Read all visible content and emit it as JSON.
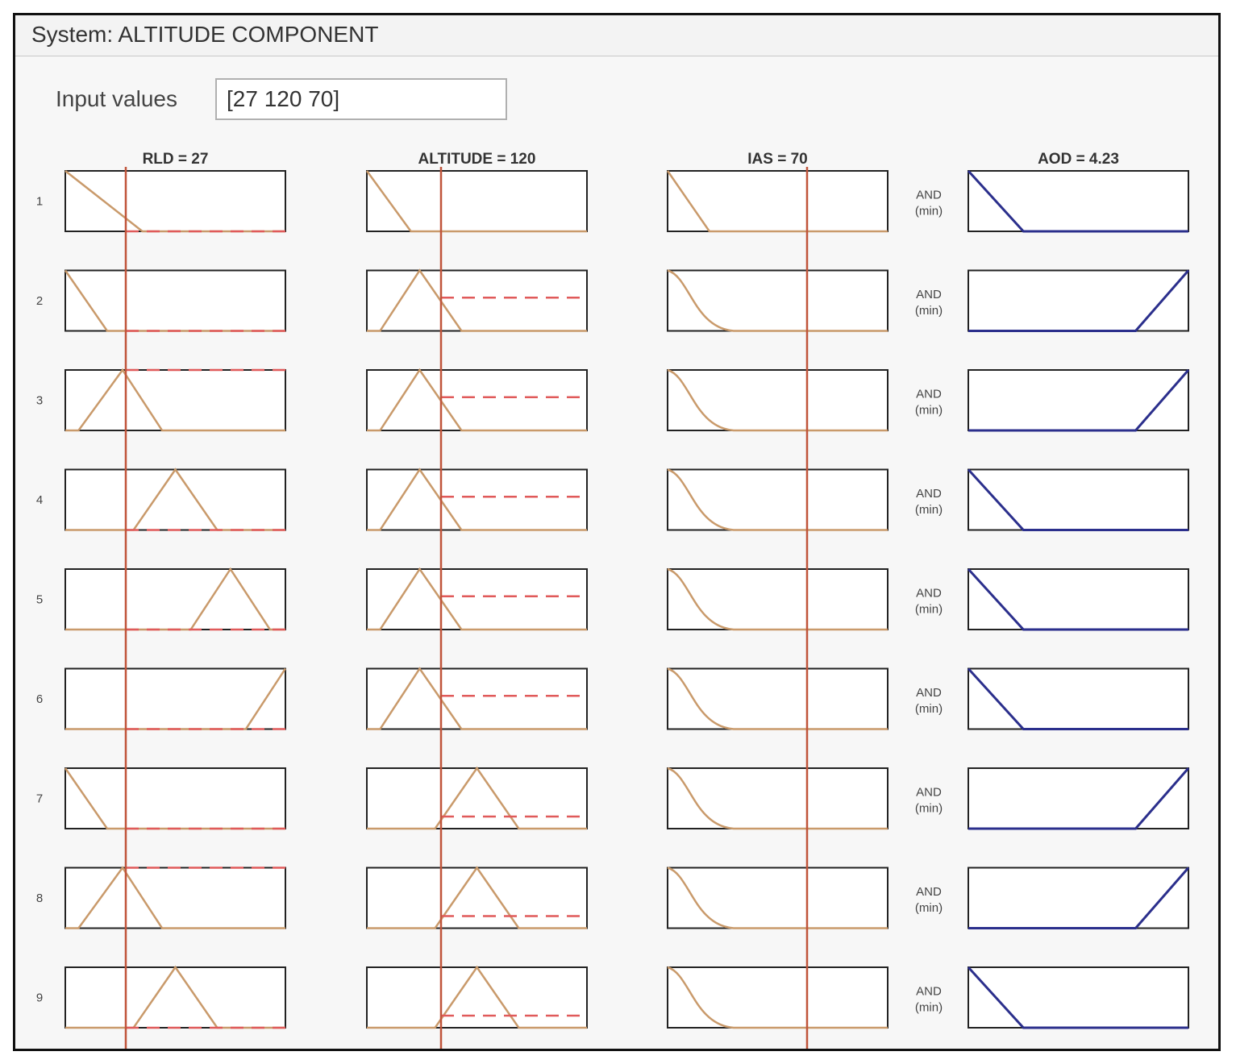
{
  "title": "System: ALTITUDE COMPONENT",
  "input": {
    "label": "Input values",
    "value": "[27 120 70]"
  },
  "columns": [
    {
      "name": "RLD",
      "value": "27",
      "header": "RLD = 27"
    },
    {
      "name": "ALTITUDE",
      "value": "120",
      "header": "ALTITUDE = 120"
    },
    {
      "name": "IAS",
      "value": "70",
      "header": "IAS = 70"
    },
    {
      "name": "AOD",
      "value": "4.23",
      "header": "AOD = 4.23"
    }
  ],
  "operator": {
    "line1": "AND",
    "line2": "(min)"
  },
  "colors": {
    "input_mf": "#c99a6b",
    "input_line": "#c0543a",
    "fired": "#e05a5a",
    "output_mf": "#2b2f8c",
    "frame": "#111111"
  },
  "rules": [
    {
      "num": "1",
      "rld": "low",
      "altitude": "low",
      "ias": "low",
      "aod": "low",
      "rld_level": 0,
      "alt_level": 0
    },
    {
      "num": "2",
      "rld": "low_narrow",
      "altitude": "mid",
      "ias": "low_smooth",
      "aod": "high",
      "rld_level": 0,
      "alt_level": 0.55
    },
    {
      "num": "3",
      "rld": "tri_low",
      "altitude": "mid",
      "ias": "low_smooth",
      "aod": "high",
      "rld_level": 1,
      "alt_level": 0.55
    },
    {
      "num": "4",
      "rld": "tri_mid",
      "altitude": "mid",
      "ias": "low_smooth",
      "aod": "low",
      "rld_level": 0,
      "alt_level": 0.55
    },
    {
      "num": "5",
      "rld": "tri_high",
      "altitude": "mid",
      "ias": "low_smooth",
      "aod": "low",
      "rld_level": 0,
      "alt_level": 0.55
    },
    {
      "num": "6",
      "rld": "high",
      "altitude": "mid",
      "ias": "low_smooth",
      "aod": "low",
      "rld_level": 0,
      "alt_level": 0.55
    },
    {
      "num": "7",
      "rld": "low_narrow",
      "altitude": "high",
      "ias": "low_smooth",
      "aod": "high",
      "rld_level": 0,
      "alt_level": 0.2
    },
    {
      "num": "8",
      "rld": "tri_low",
      "altitude": "high",
      "ias": "low_smooth",
      "aod": "high",
      "rld_level": 1,
      "alt_level": 0.2
    },
    {
      "num": "9",
      "rld": "tri_mid",
      "altitude": "high",
      "ias": "low_smooth",
      "aod": "low",
      "rld_level": 0,
      "alt_level": 0.2
    }
  ]
}
